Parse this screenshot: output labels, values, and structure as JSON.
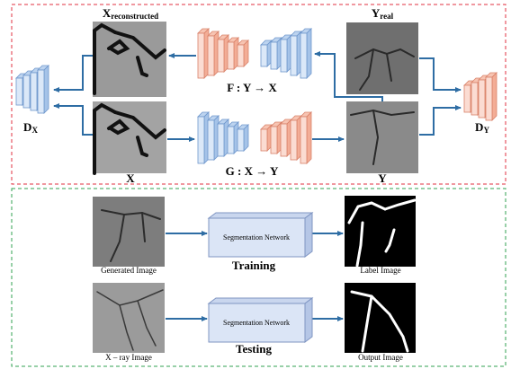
{
  "top": {
    "x_reconstructed": {
      "base": "X",
      "sub": "reconstructed"
    },
    "y_real": {
      "base": "Y",
      "sub": "real"
    },
    "generator_f": "F : Y → X",
    "generator_g": "G : X → Y",
    "x": "X",
    "y": "Y",
    "d_x": {
      "base": "D",
      "sub": "X"
    },
    "d_y": {
      "base": "D",
      "sub": "Y"
    }
  },
  "bottom": {
    "training": {
      "caption": "Training",
      "network": "Segmentation Network",
      "input": "Generated Image",
      "output": "Label Image"
    },
    "testing": {
      "caption": "Testing",
      "network": "Segmentation Network",
      "input": "X – ray Image",
      "output": "Output Image"
    }
  }
}
